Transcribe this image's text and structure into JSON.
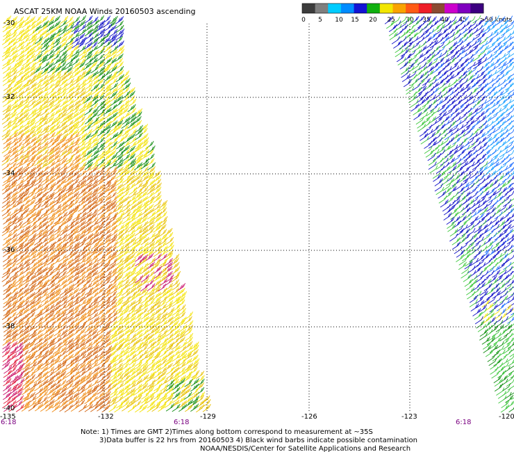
{
  "title": "ASCAT 25KM NOAA Winds 20160503 ascending",
  "legend": {
    "labels": [
      "0",
      "5",
      "10",
      "15",
      "20",
      "25",
      "30",
      "35",
      "40",
      "45",
      ">50 knots"
    ],
    "colors": [
      "#3c3c3c",
      "#7f7f7f",
      "#00ccff",
      "#008cff",
      "#1414d4",
      "#10b010",
      "#f2e600",
      "#f9a300",
      "#ff5a14",
      "#ee1e28",
      "#8b4a32",
      "#cc00cc",
      "#7f00bf",
      "#3c0080"
    ]
  },
  "axes": {
    "lat_labels": [
      "-30",
      "-32",
      "-34",
      "-36",
      "-38",
      "-40"
    ],
    "lon_labels": [
      "-135",
      "-132",
      "-129",
      "-126",
      "-123",
      "-120"
    ]
  },
  "times": [
    "6:18",
    "6:18",
    "6:18"
  ],
  "notes": [
    "Note: 1) Times are GMT 2)Times along bottom correspond to measurement at ~35S",
    "3)Data buffer is 22 hrs from 20160503 4) Black wind barbs indicate possible contamination",
    "NOAA/NESDIS/Center for Satellite Applications and Research"
  ],
  "wind_colors": {
    "dark_green": "#0d8a0d",
    "green": "#3cc73c",
    "blue": "#1010c8",
    "light_blue": "#1c6cff",
    "cyan": "#20a8ff",
    "yellow": "#f4e200",
    "gold": "#e8c000",
    "orange": "#f08a10",
    "dark_orange": "#d2620c",
    "red": "#e01a3a",
    "magenta": "#c8106a"
  }
}
